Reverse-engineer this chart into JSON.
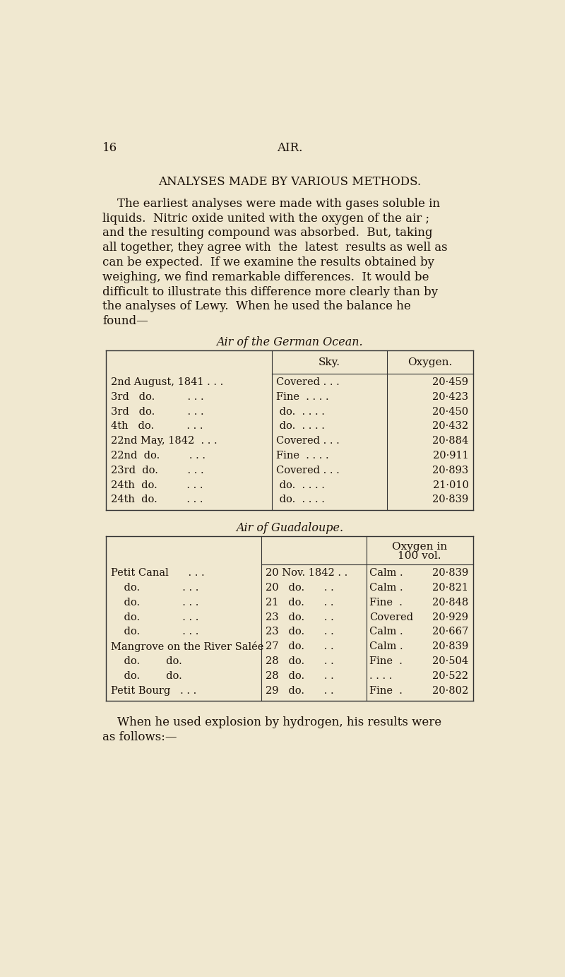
{
  "bg_color": "#f0e8d0",
  "text_color": "#1a1008",
  "page_number": "16",
  "page_header": "AIR.",
  "title_parts": [
    {
      "text": "A",
      "size": 13.5
    },
    {
      "text": "NALYSES",
      "size": 10.5
    },
    {
      "text": "  ",
      "size": 13.5
    },
    {
      "text": "MADE",
      "size": 10.5
    },
    {
      "text": "  ",
      "size": 13.5
    },
    {
      "text": "BY",
      "size": 10.5
    },
    {
      "text": "  ",
      "size": 13.5
    },
    {
      "text": "VARIOUS",
      "size": 10.5
    },
    {
      "text": "  M",
      "size": 13.5
    },
    {
      "text": "ETHODS",
      "size": 10.5
    },
    {
      "text": ".",
      "size": 13.5
    }
  ],
  "para1_lines": [
    "    The earliest analyses were made with gases soluble in",
    "liquids.  Nitric oxide united with the oxygen of the air ;",
    "and the resulting compound was absorbed.  But, taking",
    "all together, they agree with  the  latest  results as well as",
    "can be expected.  If we examine the results obtained by",
    "weighing, we find remarkable differences.  It would be",
    "difficult to illustrate this difference more clearly than by",
    "the analyses of Lewy.  When he used the balance he",
    "found—"
  ],
  "table1_title": "Air of the German Ocean.",
  "table1_rows": [
    [
      "2nd August, 1841 . . .",
      "Covered . . .",
      "20·459"
    ],
    [
      "3rd   do.          . . .",
      "Fine  . . . .",
      "20·423"
    ],
    [
      "3rd   do.          . . .",
      " do.  . . . .",
      "20·450"
    ],
    [
      "4th   do.          . . .",
      " do.  . . . .",
      "20·432"
    ],
    [
      "22nd May, 1842  . . .",
      "Covered . . .",
      "20·884"
    ],
    [
      "22nd  do.         . . .",
      "Fine  . . . .",
      "20·911"
    ],
    [
      "23rd  do.         . . .",
      "Covered . . .",
      "20·893"
    ],
    [
      "24th  do.         . . .",
      " do.  . . . .",
      "21·010"
    ],
    [
      "24th  do.         . . .",
      " do.  . . . .",
      "20·839"
    ]
  ],
  "table2_title": "Air of Guadaloupe.",
  "table2_rows": [
    [
      "Petit Canal      . . .",
      "20 Nov. 1842 . .",
      "Calm .",
      "20·839"
    ],
    [
      "    do.             . . .",
      "20   do.      . .",
      "Calm .",
      "20·821"
    ],
    [
      "    do.             . . .",
      "21   do.      . .",
      "Fine  .",
      "20·848"
    ],
    [
      "    do.             . . .",
      "23   do.      . .",
      "Covered",
      "20·929"
    ],
    [
      "    do.             . . .",
      "23   do.      . .",
      "Calm .",
      "20·667"
    ],
    [
      "Mangrove on the River Salée",
      "27   do.      . .",
      "Calm .",
      "20·839"
    ],
    [
      "    do.        do.      ",
      "28   do.      . .",
      "Fine  .",
      "20·504"
    ],
    [
      "    do.        do.      ",
      "28   do.      . .",
      ". . . .",
      "20·522"
    ],
    [
      "Petit Bourg   . . .",
      "29   do.      . .",
      "Fine  .",
      "20·802"
    ]
  ],
  "para2_lines": [
    "    When he used explosion by hydrogen, his results were",
    "as follows:—"
  ],
  "figwidth": 8.0,
  "figheight": 13.83,
  "dpi": 100
}
